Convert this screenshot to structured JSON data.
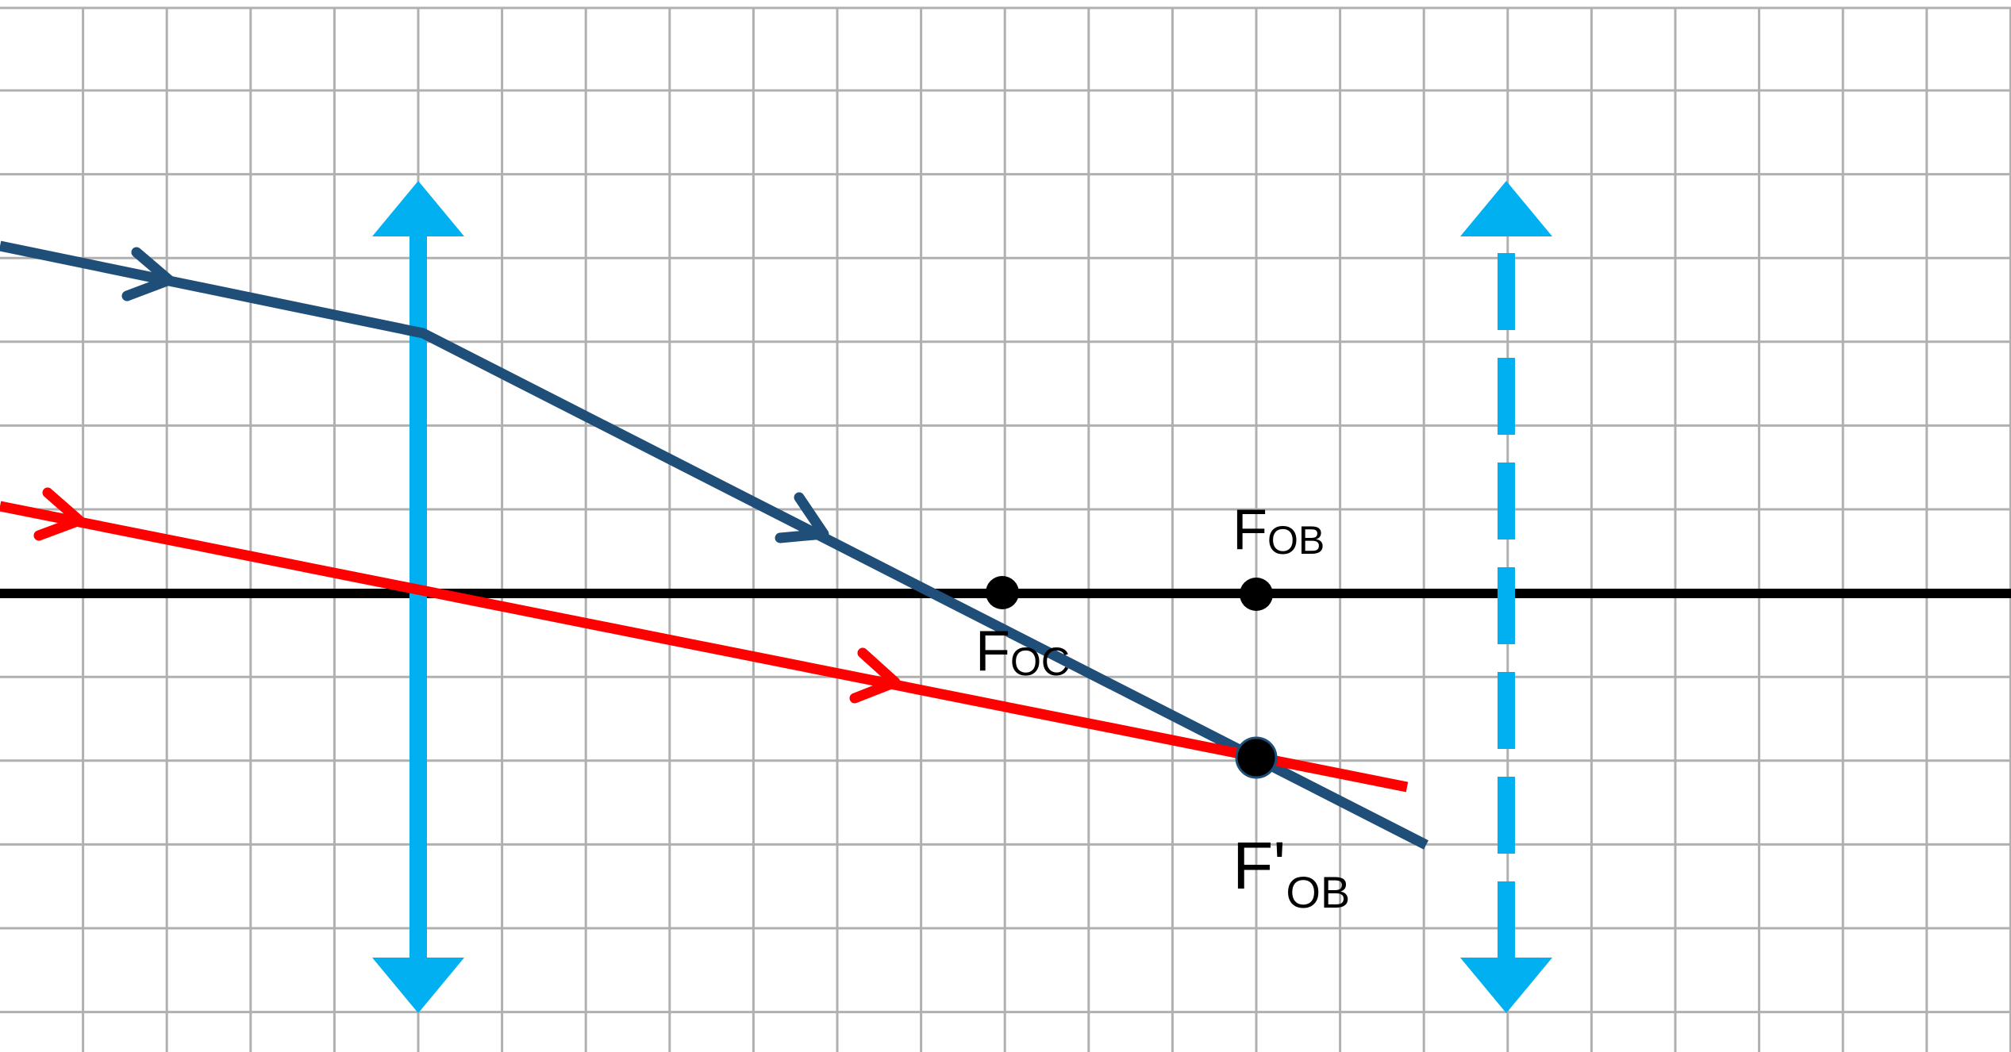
{
  "colors": {
    "grid": "#b0b0b0",
    "axis": "#000000",
    "lens": "#00b0f0",
    "ray_blue": "#1f4e79",
    "ray_red": "#ff0000",
    "point": "#000000"
  },
  "labels": {
    "f_ob": {
      "main": "F",
      "sub": "OB"
    },
    "f_oc": {
      "main": "F",
      "sub": "OC"
    },
    "f_prime_ob": {
      "main": "F'",
      "sub": "OB"
    }
  }
}
